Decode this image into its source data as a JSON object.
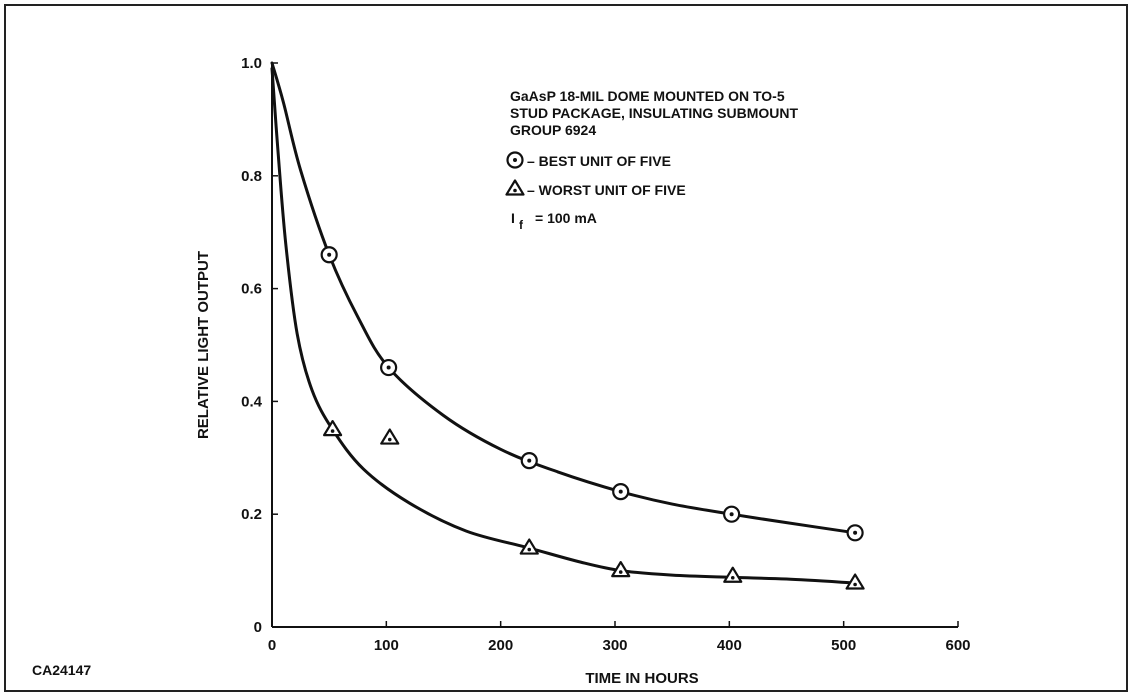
{
  "figure_id": "CA24147",
  "chart_data": {
    "type": "scatter",
    "xlabel": "TIME IN HOURS",
    "ylabel": "RELATIVE LIGHT OUTPUT",
    "xlim": [
      0,
      600
    ],
    "ylim": [
      0,
      1.0
    ],
    "xticks": [
      0,
      100,
      200,
      300,
      400,
      500,
      600
    ],
    "yticks": [
      0,
      0.2,
      0.4,
      0.6,
      0.8,
      1.0
    ],
    "ytick_labels": [
      "0",
      "0.2",
      "0.4",
      "0.6",
      "0.8",
      "1.0"
    ],
    "grid": false,
    "annotation": [
      "GaAsP 18-MIL DOME MOUNTED ON TO-5",
      "STUD PACKAGE, INSULATING SUBMOUNT",
      "GROUP 6924"
    ],
    "legend": [
      {
        "marker": "circle-dot",
        "label": "– BEST UNIT OF FIVE"
      },
      {
        "marker": "triangle-dot",
        "label": "– WORST UNIT OF FIVE"
      }
    ],
    "condition": {
      "symbol": "I",
      "subscript": "f",
      "text": "= 100 mA"
    },
    "series": [
      {
        "marker": "circle-dot",
        "points": [
          [
            50,
            0.66
          ],
          [
            102,
            0.46
          ],
          [
            225,
            0.295
          ],
          [
            305,
            0.24
          ],
          [
            402,
            0.2
          ],
          [
            510,
            0.167
          ]
        ],
        "curve": [
          [
            0,
            1.0
          ],
          [
            10,
            0.93
          ],
          [
            25,
            0.81
          ],
          [
            50,
            0.66
          ],
          [
            75,
            0.55
          ],
          [
            102,
            0.46
          ],
          [
            150,
            0.375
          ],
          [
            200,
            0.315
          ],
          [
            250,
            0.275
          ],
          [
            305,
            0.24
          ],
          [
            350,
            0.218
          ],
          [
            402,
            0.2
          ],
          [
            450,
            0.185
          ],
          [
            510,
            0.167
          ]
        ]
      },
      {
        "marker": "triangle-dot",
        "points": [
          [
            53,
            0.35
          ],
          [
            103,
            0.335
          ],
          [
            225,
            0.14
          ],
          [
            305,
            0.1
          ],
          [
            403,
            0.09
          ],
          [
            510,
            0.078
          ]
        ],
        "curve": [
          [
            0,
            0.99
          ],
          [
            5,
            0.85
          ],
          [
            12,
            0.68
          ],
          [
            22,
            0.52
          ],
          [
            35,
            0.42
          ],
          [
            53,
            0.35
          ],
          [
            80,
            0.28
          ],
          [
            120,
            0.22
          ],
          [
            170,
            0.17
          ],
          [
            225,
            0.14
          ],
          [
            270,
            0.115
          ],
          [
            305,
            0.1
          ],
          [
            350,
            0.092
          ],
          [
            403,
            0.088
          ],
          [
            450,
            0.085
          ],
          [
            510,
            0.078
          ]
        ]
      }
    ]
  }
}
